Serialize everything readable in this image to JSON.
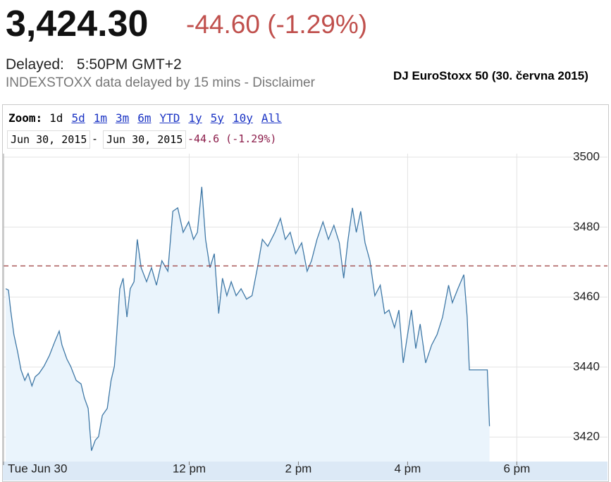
{
  "header": {
    "price": "3,424.30",
    "change": "-44.60 (-1.29%)",
    "delayed_label": "Delayed:",
    "delayed_time": "5:50PM GMT+2",
    "note": "INDEXSTOXX data delayed by 15 mins - Disclaimer",
    "caption": "DJ EuroStoxx 50 (30. června 2015)"
  },
  "controls": {
    "zoom_label": "Zoom:",
    "zoom_options": [
      "1d",
      "5d",
      "1m",
      "3m",
      "6m",
      "YTD",
      "1y",
      "5y",
      "10y",
      "All"
    ],
    "date_from": "Jun 30, 2015",
    "separator": "-",
    "date_to": "Jun 30, 2015",
    "range_change": "-44.6 (-1.29%)"
  },
  "chart_data": {
    "type": "area",
    "color": "#3f78a6",
    "fill_color": "#eaf4fc",
    "grid": true,
    "reference_line": 3468.9,
    "x": [
      8.64,
      8.69,
      8.73,
      8.79,
      8.86,
      8.92,
      8.99,
      9.05,
      9.12,
      9.18,
      9.25,
      9.34,
      9.44,
      9.54,
      9.62,
      9.67,
      9.76,
      9.83,
      9.93,
      10.02,
      10.08,
      10.15,
      10.21,
      10.28,
      10.34,
      10.41,
      10.5,
      10.57,
      10.63,
      10.66,
      10.73,
      10.79,
      10.86,
      10.92,
      10.99,
      11.05,
      11.12,
      11.22,
      11.31,
      11.4,
      11.5,
      11.61,
      11.7,
      11.79,
      11.89,
      11.99,
      12.08,
      12.15,
      12.23,
      12.3,
      12.38,
      12.46,
      12.54,
      12.61,
      12.69,
      12.77,
      12.86,
      12.95,
      13.05,
      13.15,
      13.25,
      13.34,
      13.44,
      13.57,
      13.67,
      13.76,
      13.85,
      13.95,
      14.06,
      14.16,
      14.24,
      14.34,
      14.45,
      14.55,
      14.65,
      14.75,
      14.83,
      14.91,
      14.99,
      15.06,
      15.14,
      15.22,
      15.31,
      15.4,
      15.5,
      15.58,
      15.66,
      15.76,
      15.84,
      15.92,
      15.99,
      16.07,
      16.15,
      16.23,
      16.33,
      16.44,
      16.54,
      16.64,
      16.75,
      16.82,
      16.92,
      17.03,
      17.09,
      17.13,
      17.46,
      17.5
    ],
    "values": [
      3462.4,
      3462.0,
      3456.3,
      3449.3,
      3444.3,
      3439.2,
      3436.2,
      3438.2,
      3434.6,
      3437.2,
      3438.2,
      3440.2,
      3443.3,
      3447.3,
      3450.3,
      3446.3,
      3442.3,
      3440.2,
      3436.2,
      3435.2,
      3431.2,
      3428.2,
      3416.1,
      3419.1,
      3420.1,
      3426.2,
      3428.2,
      3436.2,
      3440.2,
      3446.3,
      3462.4,
      3465.4,
      3454.3,
      3462.4,
      3464.4,
      3476.5,
      3468.4,
      3464.4,
      3468.4,
      3463.4,
      3470.4,
      3467.4,
      3484.5,
      3485.5,
      3478.5,
      3481.5,
      3476.5,
      3478.5,
      3491.5,
      3476.5,
      3468.4,
      3472.4,
      3455.3,
      3465.4,
      3460.4,
      3464.4,
      3460.4,
      3462.4,
      3459.4,
      3460.4,
      3468.4,
      3476.5,
      3474.5,
      3478.5,
      3482.5,
      3476.5,
      3478.5,
      3472.4,
      3475.5,
      3467.4,
      3470.4,
      3476.5,
      3481.5,
      3476.5,
      3480.5,
      3475.5,
      3465.4,
      3476.5,
      3485.5,
      3478.5,
      3484.5,
      3475.5,
      3470.4,
      3460.4,
      3463.4,
      3455.3,
      3456.3,
      3451.3,
      3456.3,
      3441.2,
      3448.3,
      3456.3,
      3445.3,
      3452.3,
      3441.2,
      3446.3,
      3449.3,
      3454.3,
      3463.4,
      3458.4,
      3462.4,
      3466.4,
      3454.3,
      3439.2,
      3439.2,
      3423.1
    ],
    "xlim": [
      8.6,
      18.86
    ],
    "ylim": [
      3413,
      3501
    ],
    "xticks": [
      {
        "value": 8.6,
        "label": "Tue Jun 30"
      },
      {
        "value": 12,
        "label": "12 pm"
      },
      {
        "value": 14,
        "label": "2 pm"
      },
      {
        "value": 16,
        "label": "4 pm"
      },
      {
        "value": 18,
        "label": "6 pm"
      }
    ],
    "yticks": [
      3420,
      3440,
      3460,
      3480,
      3500
    ]
  }
}
